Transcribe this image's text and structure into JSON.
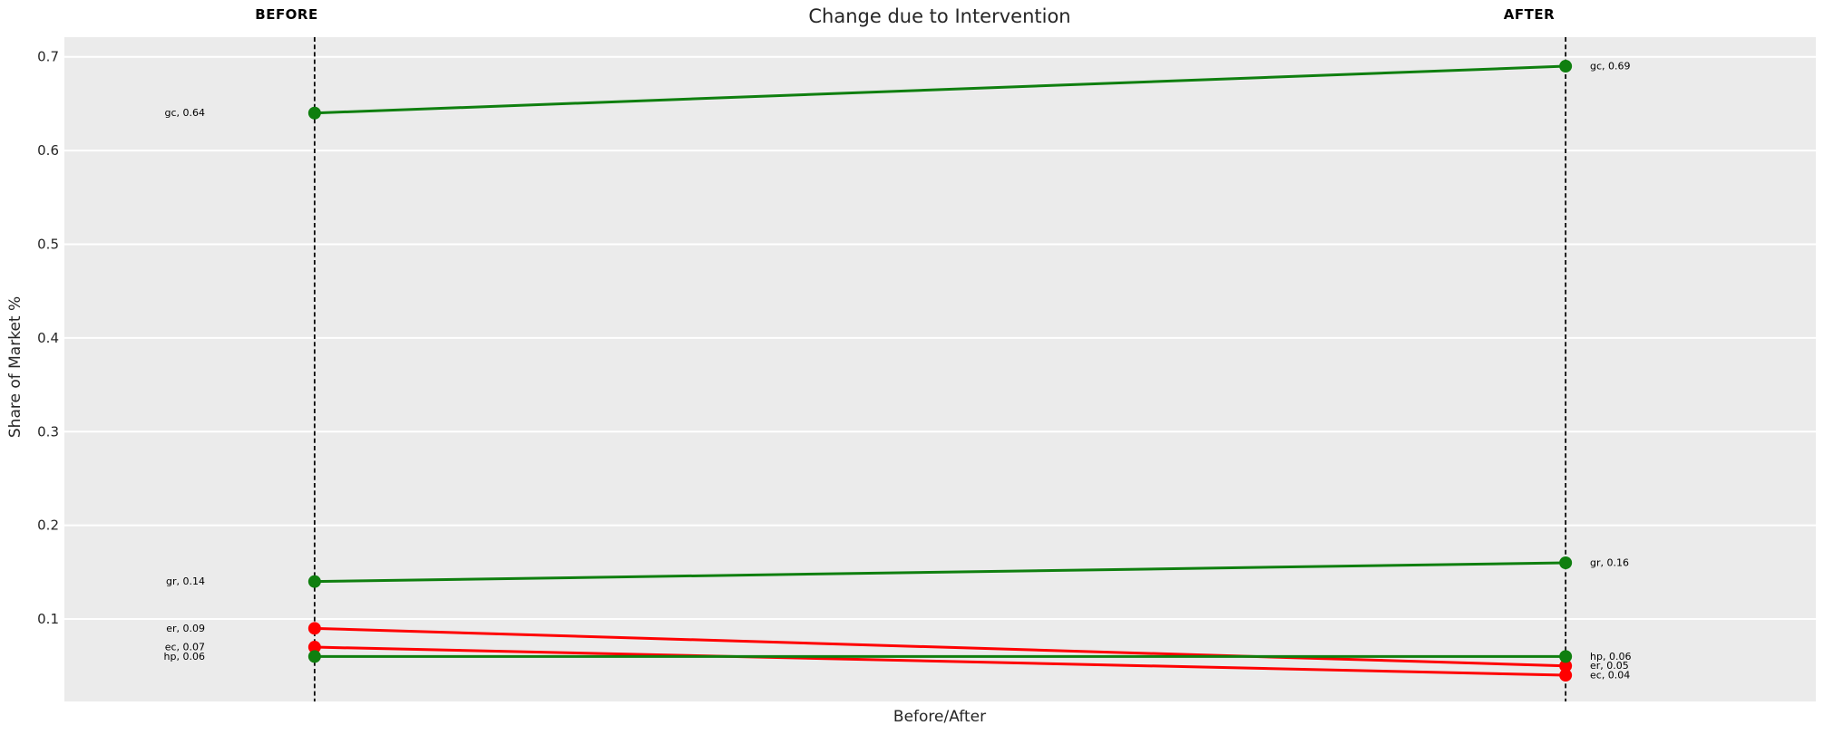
{
  "chart": {
    "title": "Change due to Intervention",
    "xlabel": "Before/After",
    "ylabel": "Share of Market %",
    "column_headers": [
      "BEFORE",
      "AFTER"
    ]
  },
  "chart_data": {
    "type": "line",
    "subtype": "slopegraph",
    "title": "Change due to Intervention",
    "xlabel": "Before/After",
    "ylabel": "Share of Market %",
    "categories": [
      "BEFORE",
      "AFTER"
    ],
    "x": [
      0,
      1
    ],
    "xlim": [
      -0.2,
      1.2
    ],
    "ylim": [
      0.012,
      0.721
    ],
    "yticks": [
      0.1,
      0.2,
      0.3,
      0.4,
      0.5,
      0.6,
      0.7
    ],
    "ytick_labels": [
      "0.1",
      "0.2",
      "0.3",
      "0.4",
      "0.5",
      "0.6",
      "0.7"
    ],
    "grid": "horizontal white gridlines on grey panel",
    "legend": "none",
    "guide_lines": "dashed vertical line at each category",
    "series": [
      {
        "name": "gc",
        "values": [
          0.64,
          0.69
        ],
        "color": "#0f7f0f",
        "labels": [
          "gc, 0.64",
          "gc, 0.69"
        ]
      },
      {
        "name": "gr",
        "values": [
          0.14,
          0.16
        ],
        "color": "#0f7f0f",
        "labels": [
          "gr, 0.14",
          "gr, 0.16"
        ]
      },
      {
        "name": "er",
        "values": [
          0.09,
          0.05
        ],
        "color": "#ff0000",
        "labels": [
          "er, 0.09",
          "er, 0.05"
        ]
      },
      {
        "name": "ec",
        "values": [
          0.07,
          0.04
        ],
        "color": "#ff0000",
        "labels": [
          "ec, 0.07",
          "ec, 0.04"
        ]
      },
      {
        "name": "hp",
        "values": [
          0.06,
          0.06
        ],
        "color": "#0f7f0f",
        "labels": [
          "hp, 0.06",
          "hp, 0.06"
        ]
      }
    ],
    "colors": {
      "panel_bg": "#ebebeb",
      "figure_bg": "#ffffff",
      "gridline": "#ffffff",
      "guide_line": "#0a0a0a",
      "text": "#262626",
      "increase": "#0f7f0f",
      "decrease": "#ff0000"
    }
  }
}
